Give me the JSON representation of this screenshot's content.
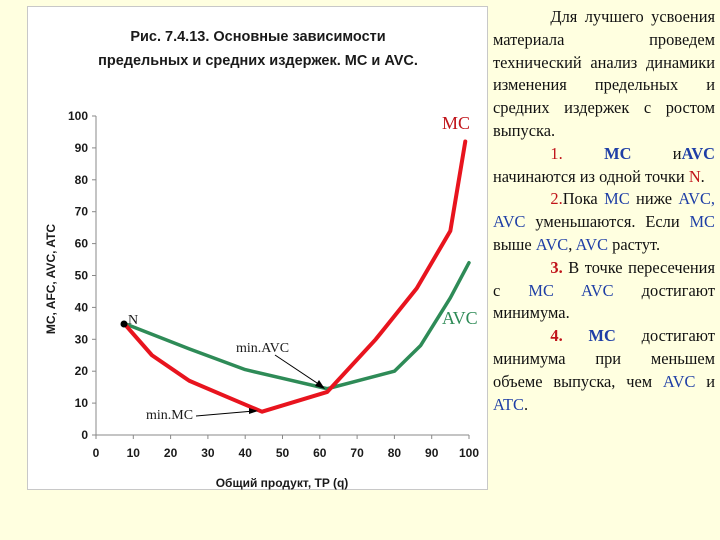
{
  "chart_data": {
    "type": "line",
    "title_line1": "Рис. 7.4.13. Основные зависимости",
    "title_line2": "предельных и средних издержек. MC и AVC.",
    "xlabel": "Общий продукт, TP (q)",
    "ylabel": "MC, AFC, AVC, ATC",
    "xlim": [
      0,
      100
    ],
    "ylim": [
      0,
      100
    ],
    "x_ticks": [
      0,
      10,
      20,
      30,
      40,
      50,
      60,
      70,
      80,
      90,
      100
    ],
    "y_ticks": [
      0,
      10,
      20,
      30,
      40,
      50,
      60,
      70,
      80,
      90,
      100
    ],
    "series": [
      {
        "name": "MC",
        "color": "#e8141e",
        "x": [
          7.5,
          15,
          25,
          35,
          44.5,
          62,
          75,
          86,
          95,
          99
        ],
        "y": [
          35,
          25,
          17,
          12,
          7.3,
          13.5,
          30,
          46,
          64,
          92
        ]
      },
      {
        "name": "AVC",
        "color": "#2e8b57",
        "x": [
          7.5,
          25,
          40,
          62,
          80,
          87,
          95,
          100
        ],
        "y": [
          35,
          27,
          20.5,
          14.5,
          20,
          28,
          43,
          54
        ]
      }
    ],
    "annotations": {
      "N": "N",
      "min_avc": "min.AVC",
      "min_mc": "min.MC"
    }
  },
  "text": {
    "p1": "Для лучшего усвоения материала проведем технический анализ динамики изменения предельных и средних издержек с ростом выпуска.",
    "p2_num": "1.",
    "p2_mc": "MC",
    "p2_and": " и",
    "p2_avc": "AVC",
    "p2_rest": " начинаются из одной точки",
    "p2_n": "N",
    "p2_end": ".",
    "p3_num": "2.",
    "p3_a": "Пока ",
    "p3_mc": "MC",
    "p3_b": " ниже ",
    "p3_avc": "AVC, AVC",
    "p3_c": " уменьшаются. Если ",
    "p3_mc2": "MC",
    "p3_d": " выше ",
    "p3_avc2": "AVC",
    "p3_e": ", ",
    "p3_avc3": "AVC",
    "p3_f": " растут.",
    "p4_num": "3.",
    "p4_a": " В точке пересечения с ",
    "p4_mc": "MC AVC",
    "p4_b": " достигают минимума.",
    "p5_num": "4.",
    "p5_mc": " MC",
    "p5_a": " достигают минимума при меньшем объеме выпуска, чем ",
    "p5_avc": "AVC",
    "p5_b": " и ",
    "p5_atc": "ATC",
    "p5_end": "."
  }
}
